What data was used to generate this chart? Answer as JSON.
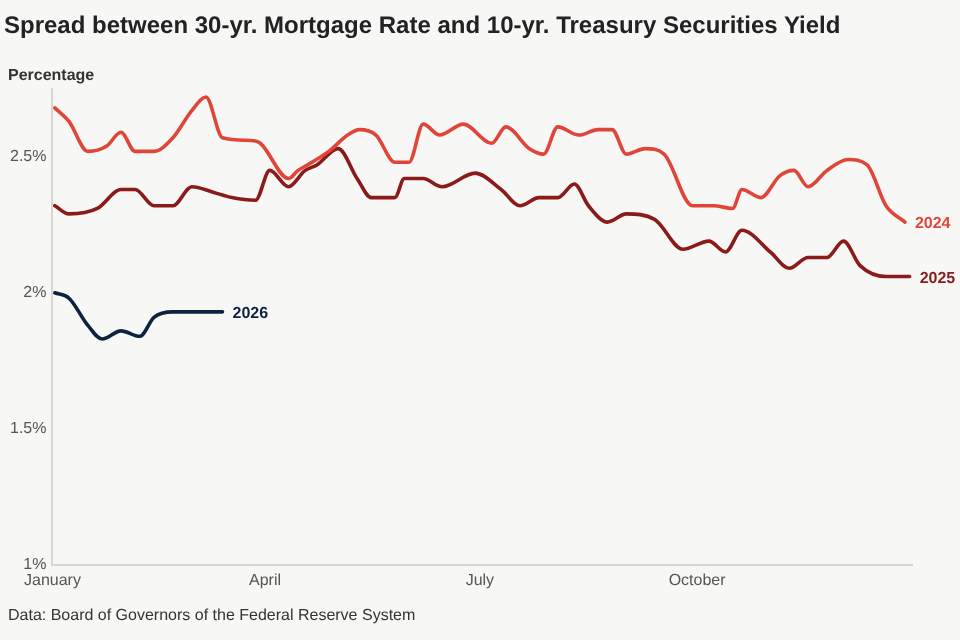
{
  "chart_data": {
    "type": "line",
    "title": "Spread between 30-yr. Mortgage Rate and 10-yr. Treasury Securities Yield",
    "ylabel": "Percentage",
    "annotations": [
      "Data: Board of Governors of the Federal Reserve System"
    ],
    "xlim": [
      "--01-01",
      "--12-31"
    ],
    "xticks": [
      {
        "value": "--01-01",
        "label": "January"
      },
      {
        "value": "--04-01",
        "label": "April"
      },
      {
        "value": "--07-01",
        "label": "July"
      },
      {
        "value": "--10-01",
        "label": "October"
      }
    ],
    "ylim": [
      1,
      2.75
    ],
    "yticks": [
      {
        "value": 1,
        "label": "1%"
      },
      {
        "value": 1.5,
        "label": "1.5%"
      },
      {
        "value": 2,
        "label": "2%"
      },
      {
        "value": 2.5,
        "label": "2.5%"
      }
    ],
    "grid": false,
    "legend": false,
    "marker": "none",
    "line_style": "solid",
    "series": [
      {
        "name": "2024",
        "color": "#e0453a",
        "x": [
          "--01-02",
          "--01-08",
          "--01-16",
          "--01-24",
          "--01-30",
          "--02-05",
          "--02-13",
          "--02-21",
          "--03-01",
          "--03-07",
          "--03-14",
          "--03-26",
          "--03-30",
          "--04-11",
          "--04-15",
          "--04-19",
          "--04-28",
          "--05-06",
          "--05-11",
          "--05-18",
          "--05-26",
          "--06-01",
          "--06-07",
          "--06-14",
          "--06-24",
          "--07-06",
          "--07-12",
          "--07-22",
          "--07-28",
          "--08-03",
          "--08-12",
          "--08-20",
          "--08-26",
          "--09-01",
          "--09-09",
          "--09-17",
          "--09-29",
          "--10-08",
          "--10-16",
          "--10-20",
          "--10-28",
          "--11-05",
          "--11-11",
          "--11-17",
          "--11-25",
          "--12-04",
          "--12-12",
          "--12-20",
          "--12-28"
        ],
        "values": [
          2.68,
          2.63,
          2.52,
          2.54,
          2.59,
          2.52,
          2.52,
          2.57,
          2.67,
          2.72,
          2.57,
          2.56,
          2.55,
          2.42,
          2.45,
          2.47,
          2.52,
          2.58,
          2.6,
          2.58,
          2.48,
          2.48,
          2.62,
          2.58,
          2.62,
          2.55,
          2.61,
          2.53,
          2.51,
          2.61,
          2.58,
          2.6,
          2.6,
          2.51,
          2.53,
          2.51,
          2.32,
          2.32,
          2.31,
          2.38,
          2.35,
          2.43,
          2.45,
          2.39,
          2.45,
          2.49,
          2.47,
          2.32,
          2.26
        ]
      },
      {
        "name": "2025",
        "color": "#8b1a1a",
        "x": [
          "--01-02",
          "--01-08",
          "--01-20",
          "--01-30",
          "--02-05",
          "--02-13",
          "--02-21",
          "--03-01",
          "--03-10",
          "--03-18",
          "--03-28",
          "--04-03",
          "--04-11",
          "--04-18",
          "--04-23",
          "--05-02",
          "--05-10",
          "--05-16",
          "--05-26",
          "--05-30",
          "--06-07",
          "--06-15",
          "--06-29",
          "--07-10",
          "--07-18",
          "--07-26",
          "--08-03",
          "--08-10",
          "--08-16",
          "--08-24",
          "--09-01",
          "--09-13",
          "--09-25",
          "--10-06",
          "--10-13",
          "--10-20",
          "--11-01",
          "--11-09",
          "--11-17",
          "--11-25",
          "--12-02",
          "--12-09",
          "--12-20",
          "--12-30"
        ],
        "values": [
          2.32,
          2.29,
          2.31,
          2.38,
          2.38,
          2.32,
          2.32,
          2.39,
          2.37,
          2.35,
          2.34,
          2.45,
          2.39,
          2.45,
          2.47,
          2.53,
          2.42,
          2.35,
          2.35,
          2.42,
          2.42,
          2.39,
          2.44,
          2.38,
          2.32,
          2.35,
          2.35,
          2.4,
          2.32,
          2.26,
          2.29,
          2.27,
          2.16,
          2.19,
          2.15,
          2.23,
          2.15,
          2.09,
          2.13,
          2.13,
          2.19,
          2.1,
          2.06,
          2.06
        ]
      },
      {
        "name": "2026",
        "color": "#0d2240",
        "x": [
          "--01-02",
          "--01-08",
          "--01-16",
          "--01-22",
          "--01-30",
          "--02-07",
          "--02-13",
          "--02-21",
          "--03-01",
          "--03-07",
          "--03-14"
        ],
        "values": [
          2.0,
          1.98,
          1.88,
          1.83,
          1.86,
          1.84,
          1.91,
          1.93,
          1.93,
          1.93,
          1.93
        ]
      }
    ]
  }
}
